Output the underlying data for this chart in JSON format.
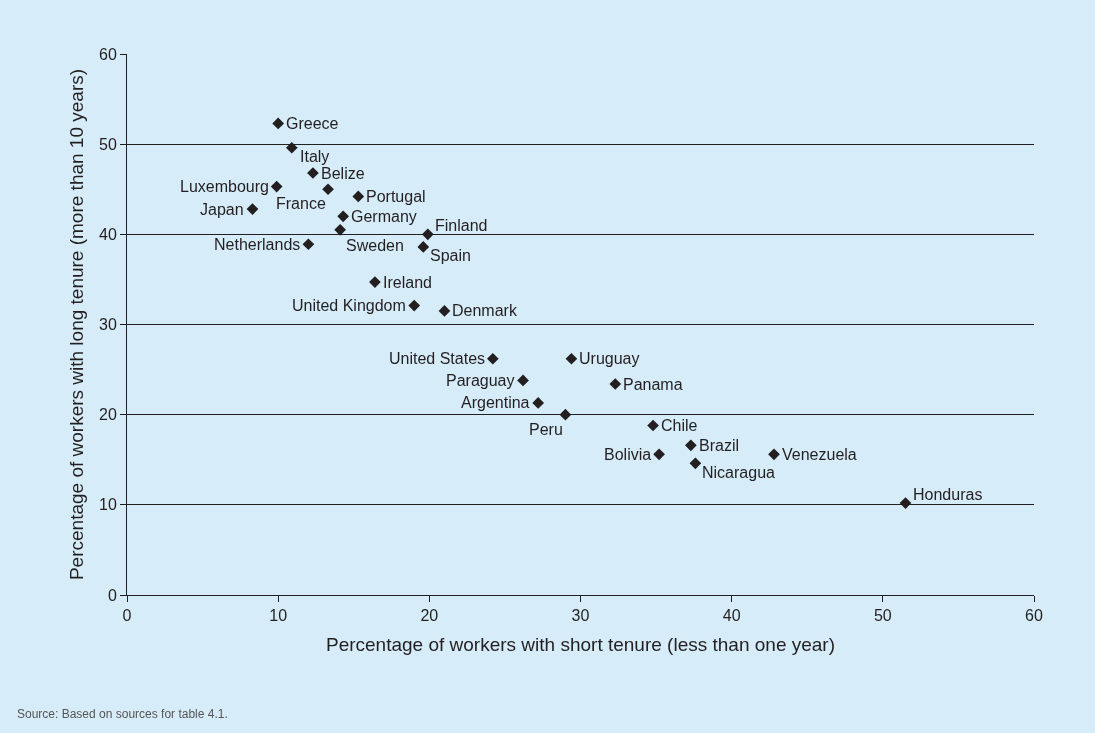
{
  "chart_data": {
    "type": "scatter",
    "xlabel": "Percentage of workers with short tenure (less than one year)",
    "ylabel": "Percentage of workers with long tenure (more than 10 years)",
    "x": [
      10.0,
      10.9,
      12.3,
      9.9,
      13.3,
      15.3,
      8.3,
      14.3,
      14.1,
      19.9,
      12.0,
      19.6,
      16.4,
      19.0,
      21.0,
      24.2,
      29.4,
      26.2,
      32.3,
      27.2,
      29.0,
      34.8,
      37.3,
      35.2,
      37.6,
      42.8,
      51.5
    ],
    "series": [
      {
        "color": "#231f20",
        "values": [
          52.3,
          49.6,
          46.8,
          45.3,
          45.0,
          44.2,
          42.8,
          42.0,
          40.5,
          40.0,
          38.9,
          38.6,
          34.7,
          32.1,
          31.5,
          26.2,
          26.2,
          23.8,
          23.4,
          21.3,
          20.0,
          18.8,
          16.6,
          15.6,
          14.6,
          15.6,
          10.2
        ]
      }
    ],
    "marker": "diamond",
    "xlim": [
      0,
      60
    ],
    "ylim": [
      0,
      60
    ],
    "xticks": [
      0,
      10,
      20,
      30,
      40,
      50,
      60
    ],
    "yticks": [
      0,
      10,
      20,
      30,
      40,
      50,
      60
    ],
    "grid": "y",
    "annotations": [
      {
        "text": "Greece",
        "x": 10.0,
        "y": 52.3
      },
      {
        "text": "Italy",
        "x": 10.9,
        "y": 49.6
      },
      {
        "text": "Belize",
        "x": 12.3,
        "y": 46.8
      },
      {
        "text": "Luxembourg",
        "x": 9.9,
        "y": 45.3
      },
      {
        "text": "France",
        "x": 13.3,
        "y": 45.0
      },
      {
        "text": "Portugal",
        "x": 15.3,
        "y": 44.2
      },
      {
        "text": "Japan",
        "x": 8.3,
        "y": 42.8
      },
      {
        "text": "Germany",
        "x": 14.3,
        "y": 42.0
      },
      {
        "text": "Sweden",
        "x": 14.1,
        "y": 40.5
      },
      {
        "text": "Finland",
        "x": 19.9,
        "y": 40.0
      },
      {
        "text": "Netherlands",
        "x": 12.0,
        "y": 38.9
      },
      {
        "text": "Spain",
        "x": 19.6,
        "y": 38.6
      },
      {
        "text": "Ireland",
        "x": 16.4,
        "y": 34.7
      },
      {
        "text": "United Kingdom",
        "x": 19.0,
        "y": 32.1
      },
      {
        "text": "Denmark",
        "x": 21.0,
        "y": 31.5
      },
      {
        "text": "United States",
        "x": 24.2,
        "y": 26.2
      },
      {
        "text": "Uruguay",
        "x": 29.4,
        "y": 26.2
      },
      {
        "text": "Paraguay",
        "x": 26.2,
        "y": 23.8
      },
      {
        "text": "Panama",
        "x": 32.3,
        "y": 23.4
      },
      {
        "text": "Argentina",
        "x": 27.2,
        "y": 21.3
      },
      {
        "text": "Peru",
        "x": 29.0,
        "y": 20.0
      },
      {
        "text": "Chile",
        "x": 34.8,
        "y": 18.8
      },
      {
        "text": "Brazil",
        "x": 37.3,
        "y": 16.6
      },
      {
        "text": "Bolivia",
        "x": 35.2,
        "y": 15.6
      },
      {
        "text": "Nicaragua",
        "x": 37.6,
        "y": 14.6
      },
      {
        "text": "Venezuela",
        "x": 42.8,
        "y": 15.6
      },
      {
        "text": "Honduras",
        "x": 51.5,
        "y": 10.2
      },
      "Source: Based on sources for table 4.1."
    ]
  }
}
